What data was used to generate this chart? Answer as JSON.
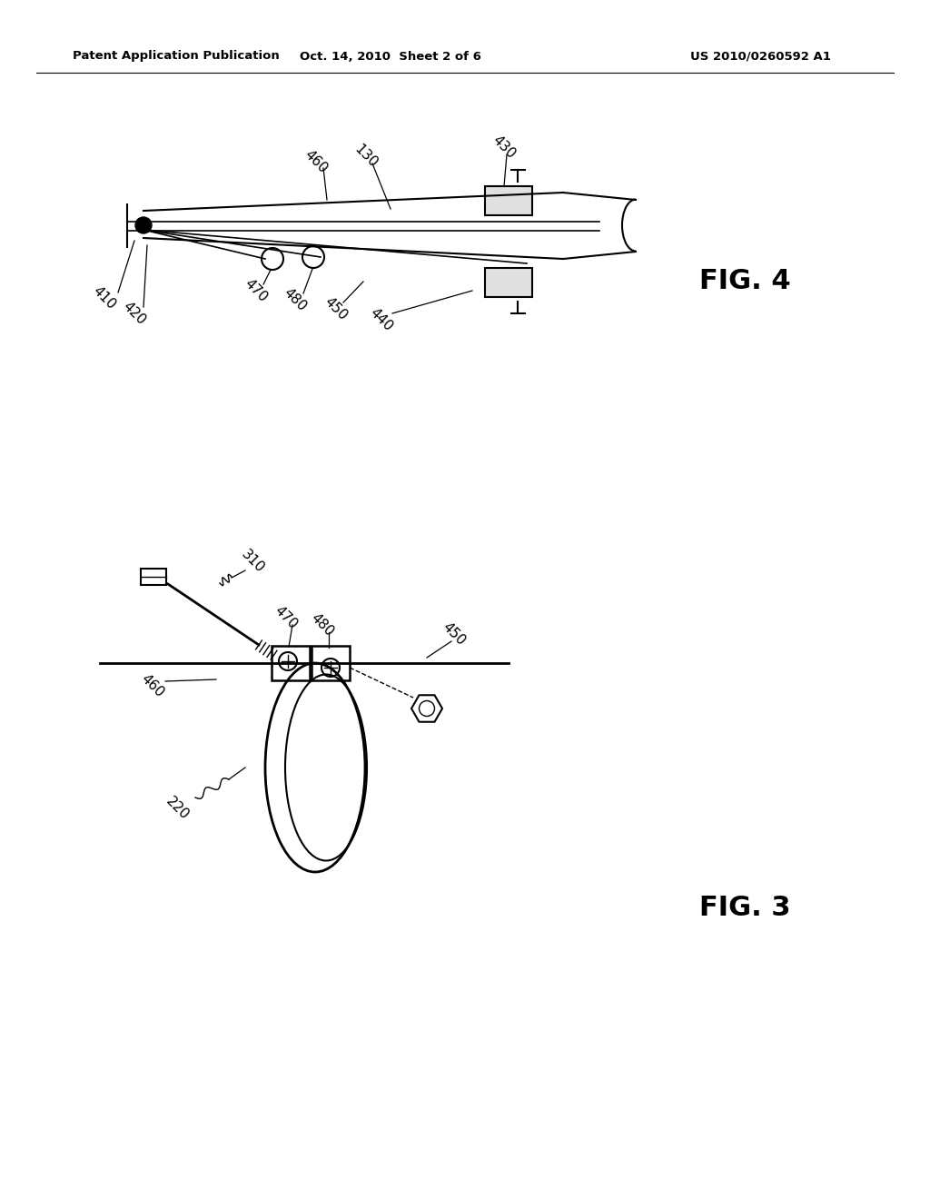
{
  "bg_color": "#ffffff",
  "header_left": "Patent Application Publication",
  "header_mid": "Oct. 14, 2010  Sheet 2 of 6",
  "header_right": "US 2010/0260592 A1",
  "fig4_label": "FIG. 4",
  "fig3_label": "FIG. 3",
  "text_color": "#000000",
  "line_color": "#000000"
}
